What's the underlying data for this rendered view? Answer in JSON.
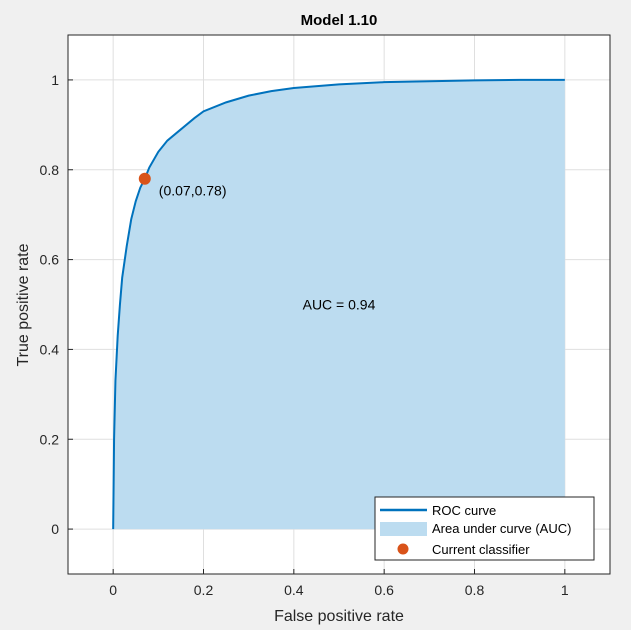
{
  "chart_data": {
    "type": "area",
    "title": "Model 1.10",
    "xlabel": "False positive rate",
    "ylabel": "True positive rate",
    "xlim": [
      -0.1,
      1.1
    ],
    "ylim": [
      -0.1,
      1.1
    ],
    "xticks": [
      0,
      0.2,
      0.4,
      0.6,
      0.8,
      1
    ],
    "yticks": [
      0,
      0.2,
      0.4,
      0.6,
      0.8,
      1
    ],
    "xtick_labels": [
      "0",
      "0.2",
      "0.4",
      "0.6",
      "0.8",
      "1"
    ],
    "ytick_labels": [
      "0",
      "0.2",
      "0.4",
      "0.6",
      "0.8",
      "1"
    ],
    "grid": true,
    "legend_position": "bottom-right",
    "series": [
      {
        "name": "ROC curve",
        "color": "#0072bd",
        "x": [
          0,
          0.002,
          0.005,
          0.01,
          0.015,
          0.02,
          0.03,
          0.04,
          0.05,
          0.06,
          0.07,
          0.08,
          0.1,
          0.12,
          0.15,
          0.18,
          0.2,
          0.25,
          0.3,
          0.35,
          0.4,
          0.5,
          0.6,
          0.7,
          0.8,
          0.9,
          1
        ],
        "y": [
          0,
          0.2,
          0.33,
          0.43,
          0.5,
          0.56,
          0.63,
          0.69,
          0.73,
          0.76,
          0.78,
          0.805,
          0.84,
          0.865,
          0.89,
          0.915,
          0.93,
          0.95,
          0.965,
          0.975,
          0.982,
          0.99,
          0.995,
          0.997,
          0.999,
          1,
          1
        ]
      }
    ],
    "area": {
      "name": "Area under curve (AUC)",
      "color": "#bcdcf0"
    },
    "classifier": {
      "name": "Current classifier",
      "x": 0.07,
      "y": 0.78,
      "label": "(0.07,0.78)",
      "color": "#d95319"
    },
    "annotation": {
      "text": "AUC = 0.94",
      "x": 0.5,
      "y": 0.5
    }
  }
}
